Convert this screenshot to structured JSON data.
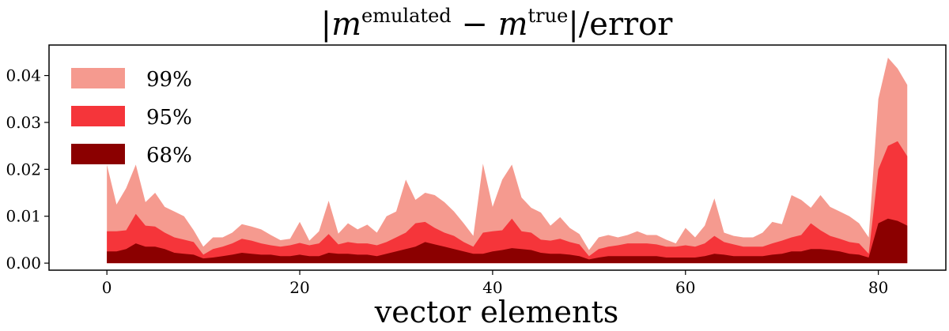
{
  "chart_data": {
    "type": "area",
    "title": {
      "m1": "m",
      "sup1": "emulated",
      "minus": " − ",
      "m2": "m",
      "sup2": "true",
      "tail": "|/error",
      "head": "|"
    },
    "xlabel": "vector elements",
    "ylabel": "",
    "xlim": [
      -6,
      87
    ],
    "ylim": [
      -0.0015,
      0.0465
    ],
    "xticks": [
      0,
      20,
      40,
      60,
      80
    ],
    "yticks": [
      0.0,
      0.01,
      0.02,
      0.03,
      0.04
    ],
    "ytick_labels": [
      "0.00",
      "0.01",
      "0.02",
      "0.03",
      "0.04"
    ],
    "xtick_labels": [
      "0",
      "20",
      "40",
      "60",
      "80"
    ],
    "legend_position": "upper-left",
    "x": [
      0,
      1,
      2,
      3,
      4,
      5,
      6,
      7,
      8,
      9,
      10,
      11,
      12,
      13,
      14,
      15,
      16,
      17,
      18,
      19,
      20,
      21,
      22,
      23,
      24,
      25,
      26,
      27,
      28,
      29,
      30,
      31,
      32,
      33,
      34,
      35,
      36,
      37,
      38,
      39,
      40,
      41,
      42,
      43,
      44,
      45,
      46,
      47,
      48,
      49,
      50,
      51,
      52,
      53,
      54,
      55,
      56,
      57,
      58,
      59,
      60,
      61,
      62,
      63,
      64,
      65,
      66,
      67,
      68,
      69,
      70,
      71,
      72,
      73,
      74,
      75,
      76,
      77,
      78,
      79,
      80,
      81,
      82,
      83
    ],
    "series": [
      {
        "name": "99%",
        "color": "#f59a8f",
        "values": [
          0.021,
          0.0125,
          0.016,
          0.021,
          0.013,
          0.015,
          0.012,
          0.011,
          0.01,
          0.007,
          0.0035,
          0.0055,
          0.0055,
          0.0065,
          0.0083,
          0.0078,
          0.0072,
          0.006,
          0.0049,
          0.0052,
          0.0088,
          0.0048,
          0.0068,
          0.0133,
          0.0063,
          0.0085,
          0.0072,
          0.0082,
          0.0065,
          0.01,
          0.011,
          0.0178,
          0.0135,
          0.015,
          0.0145,
          0.013,
          0.011,
          0.0085,
          0.0058,
          0.0212,
          0.012,
          0.0178,
          0.021,
          0.014,
          0.0118,
          0.0108,
          0.008,
          0.0098,
          0.0075,
          0.0062,
          0.0028,
          0.0055,
          0.006,
          0.0055,
          0.006,
          0.0068,
          0.006,
          0.006,
          0.005,
          0.0042,
          0.0075,
          0.0055,
          0.008,
          0.0138,
          0.0065,
          0.0058,
          0.0055,
          0.0055,
          0.0065,
          0.0088,
          0.0083,
          0.0145,
          0.0135,
          0.0118,
          0.0145,
          0.012,
          0.011,
          0.01,
          0.0085,
          0.0055,
          0.035,
          0.0438,
          0.0415,
          0.038
        ]
      },
      {
        "name": "95%",
        "color": "#f5353a",
        "values": [
          0.0068,
          0.0068,
          0.007,
          0.0105,
          0.008,
          0.0078,
          0.0065,
          0.0055,
          0.005,
          0.0045,
          0.0018,
          0.003,
          0.0035,
          0.0042,
          0.0052,
          0.0048,
          0.0042,
          0.0038,
          0.0035,
          0.0038,
          0.0043,
          0.0038,
          0.0042,
          0.0062,
          0.004,
          0.0045,
          0.0042,
          0.0042,
          0.0038,
          0.0045,
          0.0055,
          0.0065,
          0.0085,
          0.0088,
          0.0075,
          0.0065,
          0.0058,
          0.0045,
          0.0035,
          0.0065,
          0.0068,
          0.007,
          0.0095,
          0.0068,
          0.0065,
          0.005,
          0.0048,
          0.0052,
          0.0045,
          0.004,
          0.0015,
          0.003,
          0.0035,
          0.0038,
          0.0042,
          0.0042,
          0.0042,
          0.004,
          0.0035,
          0.0035,
          0.0038,
          0.0035,
          0.0042,
          0.0058,
          0.0045,
          0.004,
          0.0035,
          0.0035,
          0.0035,
          0.0042,
          0.0048,
          0.0055,
          0.006,
          0.0085,
          0.007,
          0.0058,
          0.0052,
          0.0045,
          0.0042,
          0.002,
          0.02,
          0.025,
          0.026,
          0.0228
        ]
      },
      {
        "name": "68%",
        "color": "#8b0000",
        "values": [
          0.0025,
          0.0025,
          0.003,
          0.0042,
          0.0035,
          0.0035,
          0.003,
          0.0022,
          0.002,
          0.0018,
          0.001,
          0.0012,
          0.0015,
          0.0018,
          0.0022,
          0.002,
          0.0018,
          0.0018,
          0.0015,
          0.0015,
          0.0018,
          0.0015,
          0.0015,
          0.0022,
          0.002,
          0.002,
          0.0018,
          0.0018,
          0.0015,
          0.002,
          0.0025,
          0.003,
          0.0035,
          0.0045,
          0.004,
          0.0035,
          0.003,
          0.0025,
          0.002,
          0.002,
          0.0025,
          0.0028,
          0.0032,
          0.003,
          0.0028,
          0.0022,
          0.002,
          0.002,
          0.0018,
          0.0015,
          0.0008,
          0.0012,
          0.0015,
          0.0015,
          0.0015,
          0.0015,
          0.0015,
          0.0015,
          0.0012,
          0.0012,
          0.0012,
          0.0012,
          0.0015,
          0.002,
          0.0018,
          0.0015,
          0.0015,
          0.0015,
          0.0015,
          0.0018,
          0.002,
          0.0025,
          0.0025,
          0.003,
          0.003,
          0.0028,
          0.0025,
          0.002,
          0.0018,
          0.0012,
          0.0085,
          0.0095,
          0.009,
          0.008
        ]
      }
    ]
  }
}
